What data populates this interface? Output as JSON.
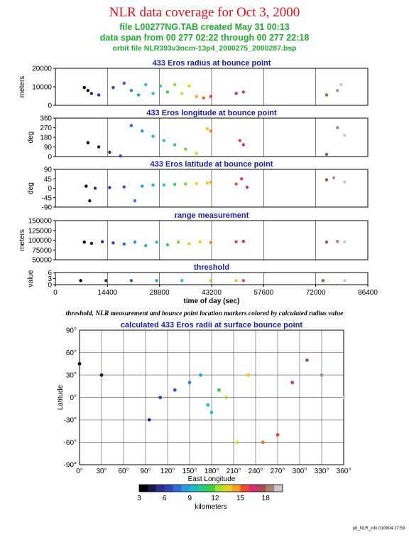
{
  "header": {
    "title": "NLR data coverage for Oct 3, 2000",
    "file_line": "file L00277NG.TAB created May 31 00:13",
    "span_line": "data span from 00 277 02:22 through 00 277 22:18",
    "orbit_line": "orbit file NLR393v3ocm-13p4_2000275_2000287.bsp"
  },
  "caption": "threshold, NLR measurement and bounce point location markers colored by calculated radius value",
  "footer": "plt_NLR_info 010904 17:59",
  "colors": {
    "panel_title": "#1d1d9c",
    "title": "#e0101a",
    "subtitle": "#22aa33"
  },
  "chart_data": [
    {
      "type": "scatter",
      "title": "433 Eros radius at bounce point",
      "ylabel": "meters",
      "ylim": [
        0,
        25000
      ],
      "yticks": [
        "0",
        "10000",
        "20000"
      ],
      "xlim": [
        0,
        86400
      ],
      "x": [
        8000,
        9000,
        10000,
        12000,
        16000,
        19000,
        21000,
        23000,
        25000,
        27000,
        29000,
        31000,
        33000,
        35000,
        37000,
        39000,
        41000,
        43000,
        50000,
        52000,
        75000,
        78000,
        79000
      ],
      "y": [
        12000,
        10000,
        8000,
        7000,
        12000,
        15000,
        10000,
        7000,
        14000,
        8000,
        13000,
        9000,
        14000,
        8000,
        13000,
        6000,
        5000,
        6000,
        8000,
        9000,
        7000,
        10000,
        14000
      ]
    },
    {
      "type": "scatter",
      "title": "433 Eros longitude at bounce point",
      "ylabel": "deg",
      "ylim": [
        0,
        360
      ],
      "yticks": [
        "0",
        "90",
        "180",
        "270",
        "360"
      ],
      "xlim": [
        0,
        86400
      ],
      "x": [
        9000,
        12000,
        15000,
        18000,
        21000,
        24000,
        27000,
        30000,
        33000,
        36000,
        39000,
        42000,
        43000,
        51000,
        52000,
        75000,
        78000,
        80000
      ],
      "y": [
        130,
        90,
        40,
        5,
        290,
        240,
        190,
        150,
        110,
        70,
        30,
        260,
        240,
        150,
        110,
        20,
        270,
        200
      ]
    },
    {
      "type": "scatter",
      "title": "433 Eros latitude at bounce point",
      "ylabel": "deg",
      "ylim": [
        -90,
        90
      ],
      "yticks": [
        "-90",
        "-45",
        "0",
        "45",
        "90"
      ],
      "xlim": [
        0,
        86400
      ],
      "x": [
        8500,
        9500,
        11000,
        15000,
        19000,
        22000,
        24000,
        27000,
        30000,
        33000,
        36000,
        39000,
        42000,
        43000,
        50000,
        51500,
        53000,
        75000,
        77000,
        80000
      ],
      "y": [
        10,
        -60,
        0,
        3,
        6,
        -60,
        10,
        15,
        16,
        18,
        20,
        22,
        25,
        28,
        20,
        45,
        5,
        40,
        50,
        30
      ]
    },
    {
      "type": "scatter",
      "title": "range measurement",
      "ylabel": "meters",
      "ylim": [
        50000,
        150000
      ],
      "yticks": [
        "50000",
        "75000",
        "100000",
        "125000",
        "150000"
      ],
      "xlim": [
        0,
        86400
      ],
      "x": [
        8000,
        10000,
        13000,
        16000,
        19000,
        22000,
        25000,
        28000,
        31000,
        34000,
        37000,
        40000,
        43000,
        50000,
        52000,
        75000,
        78000,
        80000
      ],
      "y": [
        95000,
        92000,
        96000,
        93000,
        90000,
        95000,
        86000,
        95000,
        88000,
        95000,
        91000,
        96000,
        94000,
        96000,
        97000,
        95000,
        97000,
        96000
      ]
    },
    {
      "type": "scatter",
      "title": "threshold",
      "ylabel": "value",
      "ylim": [
        0,
        6
      ],
      "yticks": [
        "0",
        "3",
        "6"
      ],
      "xlim": [
        0,
        86400
      ],
      "xticks": [
        "0",
        "14400",
        "28800",
        "43200",
        "57600",
        "72000",
        "86400"
      ],
      "xlabel": "time of day (sec)",
      "x": [
        7000,
        14000,
        21000,
        28000,
        35000,
        43000,
        50000,
        52000,
        74000,
        80000
      ],
      "y": [
        2,
        2,
        2,
        2,
        2,
        2,
        2,
        2,
        2,
        2
      ]
    },
    {
      "type": "scatter",
      "title": "calculated 433 Eros radii at surface bounce point",
      "xlabel": "East Longitude",
      "ylabel": "Latitude",
      "xlim": [
        0,
        360
      ],
      "ylim": [
        -90,
        90
      ],
      "xticks": [
        "0°",
        "30°",
        "60°",
        "90°",
        "120°",
        "150°",
        "180°",
        "210°",
        "240°",
        "270°",
        "300°",
        "330°",
        "360°"
      ],
      "yticks": [
        "-90°",
        "-60°",
        "-30°",
        "0°",
        "30°",
        "60°",
        "90°"
      ],
      "colorbar": {
        "label": "kilometers",
        "ticks": [
          "3",
          "6",
          "9",
          "12",
          "15",
          "18"
        ],
        "range": [
          3,
          20
        ]
      },
      "x": [
        0,
        30,
        95,
        110,
        130,
        150,
        165,
        175,
        180,
        190,
        200,
        215,
        230,
        250,
        270,
        290,
        310,
        330,
        360
      ],
      "y": [
        45,
        30,
        -30,
        0,
        10,
        20,
        30,
        -10,
        -20,
        10,
        0,
        -60,
        30,
        -60,
        -50,
        20,
        50,
        30,
        0
      ]
    }
  ]
}
